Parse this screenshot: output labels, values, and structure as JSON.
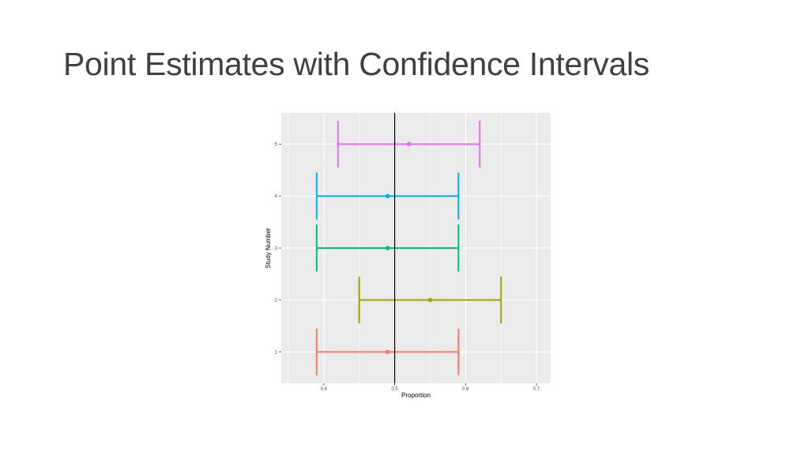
{
  "slide": {
    "title": "Point Estimates with Confidence Intervals"
  },
  "chart_data": {
    "type": "errorbar",
    "xlabel": "Proportion",
    "ylabel": "Study Number",
    "xlim": [
      0.34,
      0.72
    ],
    "ylim": [
      0.4,
      5.6
    ],
    "x_ticks": [
      0.4,
      0.5,
      0.6,
      0.7
    ],
    "x_tick_labels": [
      "0.4",
      "0.5",
      "0.6",
      "0.7"
    ],
    "y_ticks": [
      1,
      2,
      3,
      4,
      5
    ],
    "y_tick_labels": [
      "1",
      "2",
      "3",
      "4",
      "5"
    ],
    "grid": true,
    "background": "#ebebeb",
    "reference_line": {
      "x": 0.5,
      "color": "#000000"
    },
    "series": [
      {
        "study": 1,
        "estimate": 0.49,
        "lower": 0.39,
        "upper": 0.59,
        "color": "#f8766d"
      },
      {
        "study": 2,
        "estimate": 0.55,
        "lower": 0.45,
        "upper": 0.65,
        "color": "#a3a500"
      },
      {
        "study": 3,
        "estimate": 0.49,
        "lower": 0.39,
        "upper": 0.59,
        "color": "#00bf7d"
      },
      {
        "study": 4,
        "estimate": 0.49,
        "lower": 0.39,
        "upper": 0.59,
        "color": "#00b0f6"
      },
      {
        "study": 5,
        "estimate": 0.52,
        "lower": 0.42,
        "upper": 0.62,
        "color": "#e76bf3"
      }
    ]
  }
}
